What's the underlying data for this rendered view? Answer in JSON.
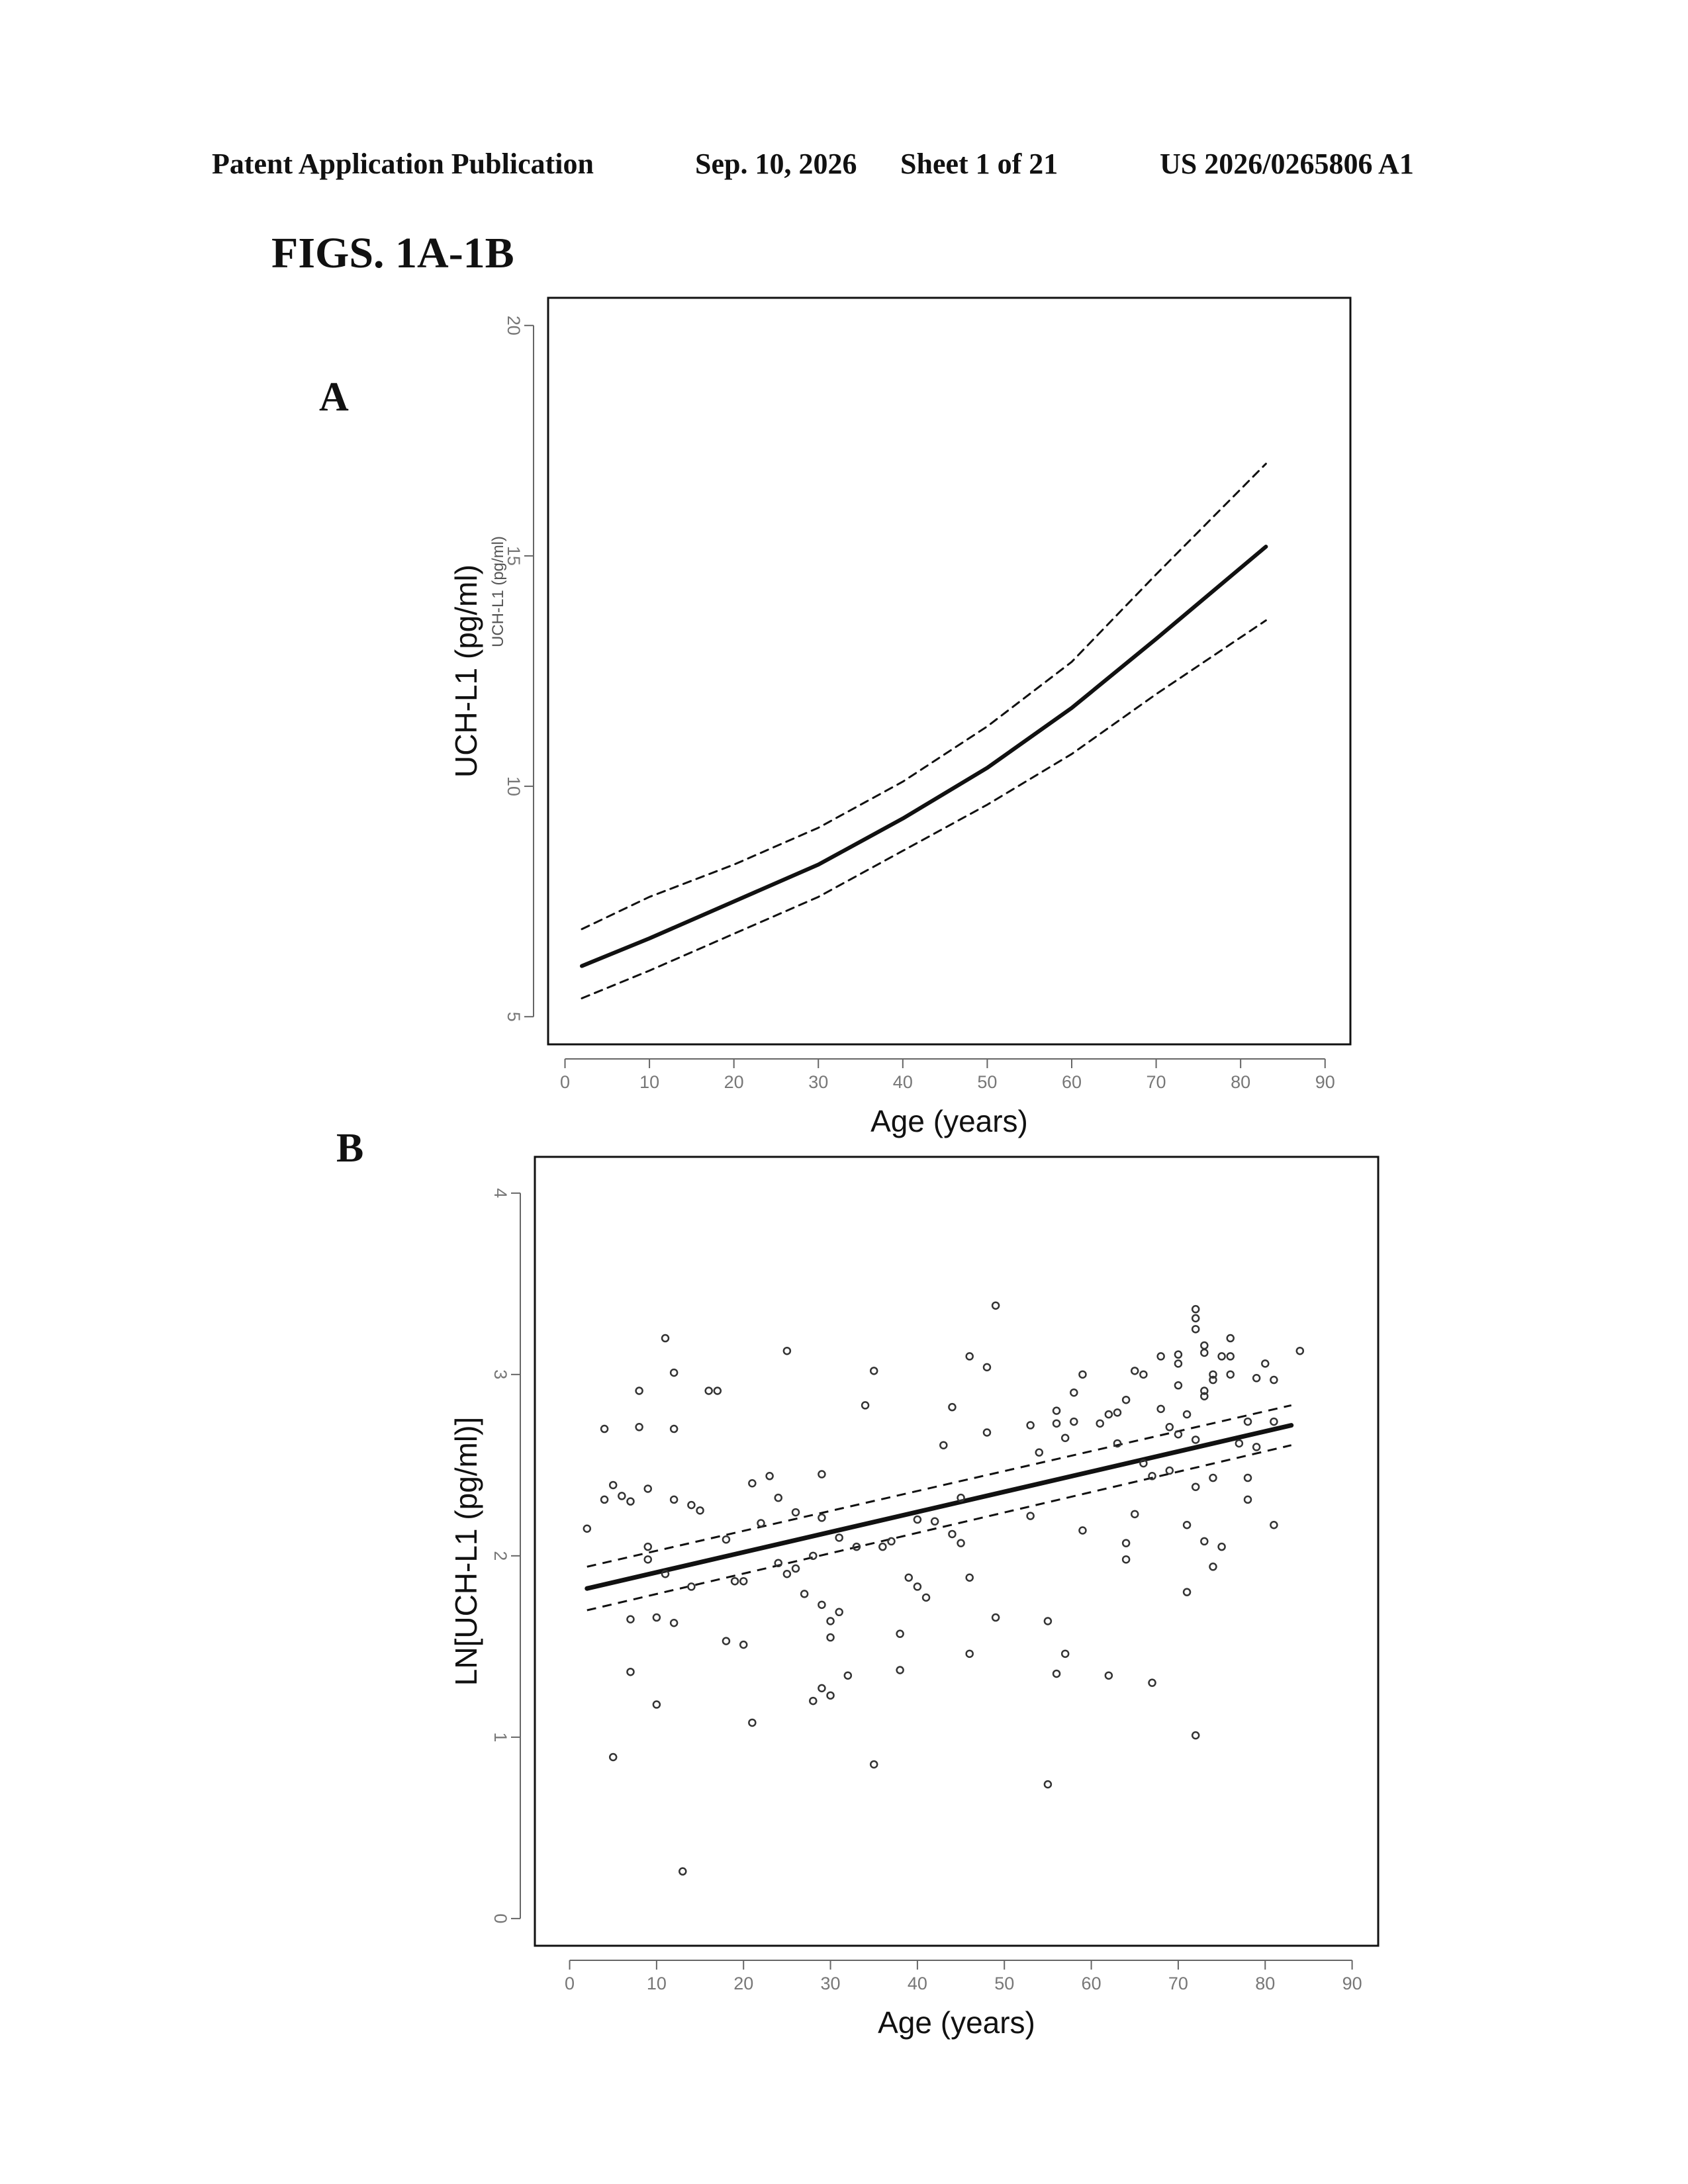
{
  "header": {
    "publication": "Patent Application Publication",
    "date": "Sep. 10, 2026",
    "sheet": "Sheet 1 of 21",
    "number": "US 2026/0265806 A1"
  },
  "figure_title": "FIGS. 1A-1B",
  "colors": {
    "ink": "#111111",
    "tick_label": "#777777"
  },
  "chart_data": [
    {
      "panel": "A",
      "type": "line",
      "xlabel": "Age (years)",
      "ylabel": "UCH-L1 (pg/ml)",
      "ylabel_small": "UCH-L1 (pg/ml)",
      "xlim": [
        -2,
        93
      ],
      "ylim": [
        4.4,
        20.6
      ],
      "x_ticks": [
        0,
        10,
        20,
        30,
        40,
        50,
        60,
        70,
        80,
        90
      ],
      "y_ticks": [
        5,
        10,
        15,
        20
      ],
      "grid": false,
      "legend": "none",
      "x": [
        2,
        10,
        20,
        30,
        40,
        50,
        60,
        70,
        83
      ],
      "series": [
        {
          "values": [
            6.1,
            6.7,
            7.5,
            8.3,
            9.3,
            10.4,
            11.7,
            13.2,
            15.2
          ],
          "style": "solid"
        },
        {
          "values": [
            6.9,
            7.6,
            8.3,
            9.1,
            10.1,
            11.3,
            12.7,
            14.6,
            17.0
          ],
          "style": "dashed"
        },
        {
          "values": [
            5.4,
            6.0,
            6.8,
            7.6,
            8.6,
            9.6,
            10.7,
            12.0,
            13.6
          ],
          "style": "dashed"
        }
      ]
    },
    {
      "panel": "B",
      "type": "scatter",
      "xlabel": "Age (years)",
      "ylabel": "LN[UCH-L1 (pg/ml)]",
      "xlim": [
        -4,
        93
      ],
      "ylim": [
        -0.15,
        4.2
      ],
      "x_ticks": [
        0,
        10,
        20,
        30,
        40,
        50,
        60,
        70,
        80,
        90
      ],
      "y_ticks": [
        0,
        1,
        2,
        3,
        4
      ],
      "grid": false,
      "legend": "none",
      "fit": {
        "x": [
          2,
          83
        ],
        "center": [
          1.82,
          2.72
        ],
        "upper": [
          1.94,
          2.83
        ],
        "lower": [
          1.7,
          2.61
        ]
      },
      "points": [
        [
          2,
          2.15
        ],
        [
          4,
          2.7
        ],
        [
          4,
          2.31
        ],
        [
          5,
          0.89
        ],
        [
          5,
          2.39
        ],
        [
          6,
          2.33
        ],
        [
          7,
          1.36
        ],
        [
          7,
          2.3
        ],
        [
          7,
          1.65
        ],
        [
          8,
          2.71
        ],
        [
          8,
          2.91
        ],
        [
          9,
          2.37
        ],
        [
          9,
          1.98
        ],
        [
          9,
          2.05
        ],
        [
          10,
          1.18
        ],
        [
          10,
          1.66
        ],
        [
          11,
          3.2
        ],
        [
          11,
          1.9
        ],
        [
          12,
          3.01
        ],
        [
          12,
          2.7
        ],
        [
          12,
          1.63
        ],
        [
          12,
          2.31
        ],
        [
          13,
          0.26
        ],
        [
          14,
          2.28
        ],
        [
          14,
          1.83
        ],
        [
          15,
          2.25
        ],
        [
          16,
          2.91
        ],
        [
          17,
          2.91
        ],
        [
          18,
          1.53
        ],
        [
          18,
          2.09
        ],
        [
          19,
          1.86
        ],
        [
          20,
          1.86
        ],
        [
          20,
          1.51
        ],
        [
          21,
          1.08
        ],
        [
          21,
          2.4
        ],
        [
          22,
          2.18
        ],
        [
          23,
          2.44
        ],
        [
          24,
          1.96
        ],
        [
          24,
          2.32
        ],
        [
          25,
          3.13
        ],
        [
          25,
          1.9
        ],
        [
          26,
          2.24
        ],
        [
          26,
          1.93
        ],
        [
          27,
          1.79
        ],
        [
          28,
          1.2
        ],
        [
          28,
          2.0
        ],
        [
          29,
          2.21
        ],
        [
          29,
          1.73
        ],
        [
          29,
          2.45
        ],
        [
          29,
          1.27
        ],
        [
          30,
          1.55
        ],
        [
          30,
          1.23
        ],
        [
          30,
          1.64
        ],
        [
          31,
          2.1
        ],
        [
          31,
          1.69
        ],
        [
          32,
          1.34
        ],
        [
          33,
          2.05
        ],
        [
          34,
          2.83
        ],
        [
          35,
          0.85
        ],
        [
          35,
          3.02
        ],
        [
          36,
          2.05
        ],
        [
          37,
          2.08
        ],
        [
          38,
          1.57
        ],
        [
          38,
          1.37
        ],
        [
          39,
          1.88
        ],
        [
          40,
          2.2
        ],
        [
          40,
          1.83
        ],
        [
          41,
          1.77
        ],
        [
          42,
          2.19
        ],
        [
          43,
          2.61
        ],
        [
          44,
          2.12
        ],
        [
          44,
          2.82
        ],
        [
          45,
          2.07
        ],
        [
          45,
          2.32
        ],
        [
          46,
          3.1
        ],
        [
          46,
          1.46
        ],
        [
          46,
          1.88
        ],
        [
          48,
          2.68
        ],
        [
          48,
          3.04
        ],
        [
          49,
          1.66
        ],
        [
          49,
          3.38
        ],
        [
          53,
          2.72
        ],
        [
          53,
          2.22
        ],
        [
          54,
          2.57
        ],
        [
          55,
          1.64
        ],
        [
          55,
          0.74
        ],
        [
          56,
          2.73
        ],
        [
          56,
          2.8
        ],
        [
          56,
          1.35
        ],
        [
          57,
          2.65
        ],
        [
          57,
          1.46
        ],
        [
          58,
          2.9
        ],
        [
          58,
          2.74
        ],
        [
          59,
          2.14
        ],
        [
          59,
          3.0
        ],
        [
          61,
          2.73
        ],
        [
          62,
          2.78
        ],
        [
          62,
          1.34
        ],
        [
          63,
          2.79
        ],
        [
          63,
          2.62
        ],
        [
          64,
          2.86
        ],
        [
          64,
          2.07
        ],
        [
          64,
          1.98
        ],
        [
          65,
          3.02
        ],
        [
          65,
          2.23
        ],
        [
          66,
          3.0
        ],
        [
          66,
          2.51
        ],
        [
          67,
          1.3
        ],
        [
          67,
          2.44
        ],
        [
          68,
          2.81
        ],
        [
          68,
          3.1
        ],
        [
          69,
          2.71
        ],
        [
          69,
          2.47
        ],
        [
          70,
          3.11
        ],
        [
          70,
          3.06
        ],
        [
          70,
          2.67
        ],
        [
          70,
          2.94
        ],
        [
          71,
          2.17
        ],
        [
          71,
          1.8
        ],
        [
          71,
          2.78
        ],
        [
          72,
          3.36
        ],
        [
          72,
          3.31
        ],
        [
          72,
          3.25
        ],
        [
          72,
          2.64
        ],
        [
          72,
          1.01
        ],
        [
          72,
          2.38
        ],
        [
          73,
          3.16
        ],
        [
          73,
          3.12
        ],
        [
          73,
          2.91
        ],
        [
          73,
          2.88
        ],
        [
          73,
          2.08
        ],
        [
          74,
          2.43
        ],
        [
          74,
          1.94
        ],
        [
          74,
          3.0
        ],
        [
          74,
          2.97
        ],
        [
          75,
          3.1
        ],
        [
          75,
          2.05
        ],
        [
          76,
          3.2
        ],
        [
          76,
          3.1
        ],
        [
          76,
          3.0
        ],
        [
          77,
          2.62
        ],
        [
          78,
          2.74
        ],
        [
          78,
          2.43
        ],
        [
          78,
          2.31
        ],
        [
          79,
          2.98
        ],
        [
          79,
          2.6
        ],
        [
          80,
          3.06
        ],
        [
          81,
          2.97
        ],
        [
          81,
          2.74
        ],
        [
          81,
          2.17
        ],
        [
          84,
          3.13
        ]
      ]
    }
  ]
}
